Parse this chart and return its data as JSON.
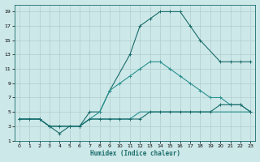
{
  "bg_color": "#cde8e8",
  "grid_color": "#b0cccc",
  "line_color1": "#1a6b6b",
  "line_color2": "#2a9090",
  "xlabel": "Humidex (Indice chaleur)",
  "xlim": [
    -0.5,
    23.5
  ],
  "ylim": [
    1,
    20
  ],
  "yticks": [
    1,
    3,
    5,
    7,
    9,
    11,
    13,
    15,
    17,
    19
  ],
  "xticks": [
    0,
    1,
    2,
    3,
    4,
    5,
    6,
    7,
    8,
    9,
    10,
    11,
    12,
    13,
    14,
    15,
    16,
    17,
    18,
    19,
    20,
    21,
    22,
    23
  ],
  "series_top_x": [
    0,
    2,
    3,
    4,
    5,
    6,
    7,
    8,
    9,
    11,
    12,
    13,
    14,
    15,
    16,
    17,
    18,
    20,
    21,
    22,
    23
  ],
  "series_top_y": [
    4,
    4,
    3,
    2,
    3,
    3,
    5,
    5,
    8,
    13,
    17,
    18,
    19,
    19,
    19,
    17,
    15,
    12,
    12,
    12,
    12
  ],
  "series_mid_x": [
    0,
    2,
    3,
    4,
    5,
    6,
    7,
    8,
    9,
    10,
    11,
    12,
    13,
    14,
    15,
    16,
    17,
    18,
    19,
    20,
    21,
    22,
    23
  ],
  "series_mid_y": [
    4,
    4,
    3,
    3,
    3,
    3,
    4,
    5,
    8,
    9,
    10,
    11,
    12,
    12,
    11,
    10,
    9,
    8,
    7,
    7,
    6,
    6,
    5
  ],
  "series_flat1_x": [
    0,
    1,
    2,
    3,
    4,
    5,
    6,
    7,
    8,
    9,
    10,
    11,
    12,
    13,
    14,
    15,
    16,
    17,
    18,
    19,
    20,
    21,
    22,
    23
  ],
  "series_flat1_y": [
    4,
    4,
    4,
    3,
    3,
    3,
    3,
    4,
    4,
    4,
    4,
    4,
    4,
    5,
    5,
    5,
    5,
    5,
    5,
    5,
    6,
    6,
    6,
    5
  ],
  "series_flat2_x": [
    0,
    1,
    2,
    3,
    4,
    5,
    6,
    7,
    8,
    9,
    10,
    11,
    12,
    13,
    14,
    15,
    16,
    17,
    18,
    19,
    20,
    21,
    22,
    23
  ],
  "series_flat2_y": [
    4,
    4,
    4,
    3,
    3,
    3,
    3,
    4,
    4,
    4,
    4,
    4,
    5,
    5,
    5,
    5,
    5,
    5,
    5,
    5,
    5,
    5,
    5,
    5
  ]
}
